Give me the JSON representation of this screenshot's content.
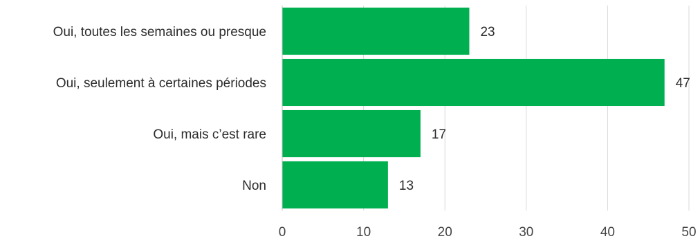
{
  "chart_data": {
    "type": "bar",
    "orientation": "horizontal",
    "categories": [
      "Oui, toutes les semaines ou presque",
      "Oui, seulement à certaines périodes",
      "Oui, mais c’est rare",
      "Non"
    ],
    "values": [
      23,
      47,
      17,
      13
    ],
    "data_labels": [
      "23",
      "47",
      "17",
      "13"
    ],
    "xlim": [
      0,
      50
    ],
    "x_ticks": [
      0,
      10,
      20,
      30,
      40,
      50
    ],
    "x_tick_labels": [
      "0",
      "10",
      "20",
      "30",
      "40",
      "50"
    ],
    "title": "",
    "xlabel": "",
    "ylabel": "",
    "grid": "vertical",
    "legend": "none",
    "bar_color": "#00b050"
  }
}
